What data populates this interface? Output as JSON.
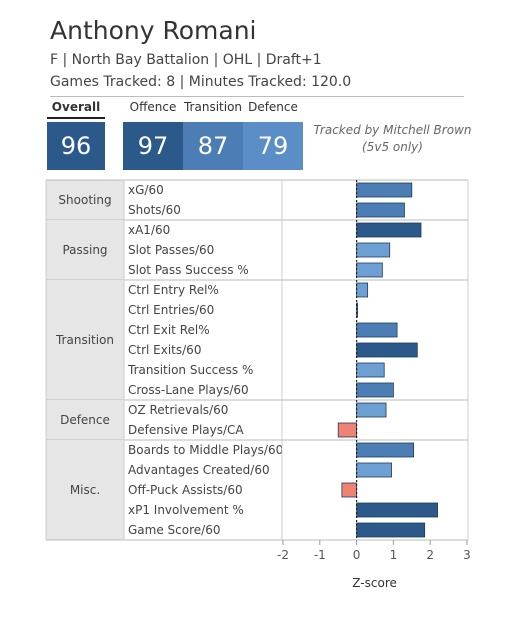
{
  "player": {
    "name": "Anthony Romani",
    "info": "F | North Bay Battalion | OHL | Draft+1",
    "games_line": "Games Tracked: 8 | Minutes Tracked: 120.0"
  },
  "scores": {
    "overall": {
      "label": "Overall",
      "value": "96"
    },
    "offence": {
      "label": "Offence",
      "value": "97"
    },
    "transition": {
      "label": "Transition",
      "value": "87"
    },
    "defence": {
      "label": "Defence",
      "value": "79"
    }
  },
  "tracked_by": {
    "line1": "Tracked by Mitchell Brown",
    "line2": "(5v5 only)"
  },
  "colors": {
    "high": "#2b5989",
    "mid": "#4c7eb5",
    "low": "#6d9fd3",
    "negative": "#ef8373",
    "category_bg": "#e6e6e6"
  },
  "chart_data": {
    "type": "bar",
    "orientation": "horizontal",
    "xlabel": "Z-score",
    "xlim": [
      -2,
      3
    ],
    "xticks": [
      -2,
      -1,
      0,
      1,
      2,
      3
    ],
    "groups": [
      {
        "name": "Shooting",
        "metrics": [
          {
            "label": "xG/60",
            "value": 1.5
          },
          {
            "label": "Shots/60",
            "value": 1.3
          }
        ]
      },
      {
        "name": "Passing",
        "metrics": [
          {
            "label": "xA1/60",
            "value": 1.75
          },
          {
            "label": "Slot Passes/60",
            "value": 0.9
          },
          {
            "label": "Slot Pass Success %",
            "value": 0.7
          }
        ]
      },
      {
        "name": "Transition",
        "metrics": [
          {
            "label": "Ctrl Entry Rel%",
            "value": 0.3
          },
          {
            "label": "Ctrl Entries/60",
            "value": 0.0
          },
          {
            "label": "Ctrl Exit Rel%",
            "value": 1.1
          },
          {
            "label": "Ctrl Exits/60",
            "value": 1.65
          },
          {
            "label": "Transition Success %",
            "value": 0.75
          },
          {
            "label": "Cross-Lane Plays/60",
            "value": 1.0
          }
        ]
      },
      {
        "name": "Defence",
        "metrics": [
          {
            "label": "OZ Retrievals/60",
            "value": 0.8
          },
          {
            "label": "Defensive Plays/CA",
            "value": -0.5
          }
        ]
      },
      {
        "name": "Misc.",
        "metrics": [
          {
            "label": "Boards to Middle Plays/60",
            "value": 1.55
          },
          {
            "label": "Advantages Created/60",
            "value": 0.95
          },
          {
            "label": "Off-Puck Assists/60",
            "value": -0.4
          },
          {
            "label": "xP1 Involvement %",
            "value": 2.2
          },
          {
            "label": "Game Score/60",
            "value": 1.85
          }
        ]
      }
    ]
  }
}
